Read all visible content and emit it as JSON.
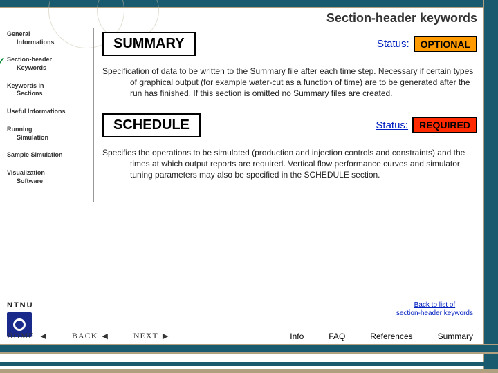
{
  "page_title": "Section-header keywords",
  "sidebar": {
    "items": [
      {
        "l1": "General",
        "l2": "Informations",
        "active": false
      },
      {
        "l1": "Section-header",
        "l2": "Keywords",
        "active": true
      },
      {
        "l1": "Keywords in",
        "l2": "Sections",
        "active": false
      },
      {
        "l1": "Useful Informations",
        "l2": "",
        "active": false
      },
      {
        "l1": "Running",
        "l2": "Simulation",
        "active": false
      },
      {
        "l1": "Sample Simulation",
        "l2": "",
        "active": false
      },
      {
        "l1": "Visualization",
        "l2": "Software",
        "active": false
      }
    ]
  },
  "logo_text": "NTNU",
  "keywords": [
    {
      "name": "SUMMARY",
      "status_label": "Status:",
      "status_value": "OPTIONAL",
      "status_class": "opt",
      "desc": "Specification of data to be written to the Summary file after each time step. Necessary if certain types of graphical output (for example water-cut as a function of time) are to be generated after the run has finished. If this section is omitted no Summary files are created."
    },
    {
      "name": "SCHEDULE",
      "status_label": "Status:",
      "status_value": "REQUIRED",
      "status_class": "req",
      "desc": "Specifies the operations to be simulated (production and injection controls and constraints) and the times at which output reports are required. Vertical flow performance curves and simulator tuning parameters may also be specified in the SCHEDULE section."
    }
  ],
  "backlink_l1": "Back to list of",
  "backlink_l2": "section-header keywords",
  "nav": {
    "home": "HOME",
    "back": "BACK",
    "next": "NEXT"
  },
  "bottom_links": [
    "Info",
    "FAQ",
    "References",
    "Summary"
  ],
  "colors": {
    "frame": "#1a5a6e",
    "tan": "#b0a080",
    "link": "#0020c0",
    "optional_bg": "#ff9a00",
    "required_bg": "#ff2a00",
    "logo_bg": "#1a2a8a"
  }
}
